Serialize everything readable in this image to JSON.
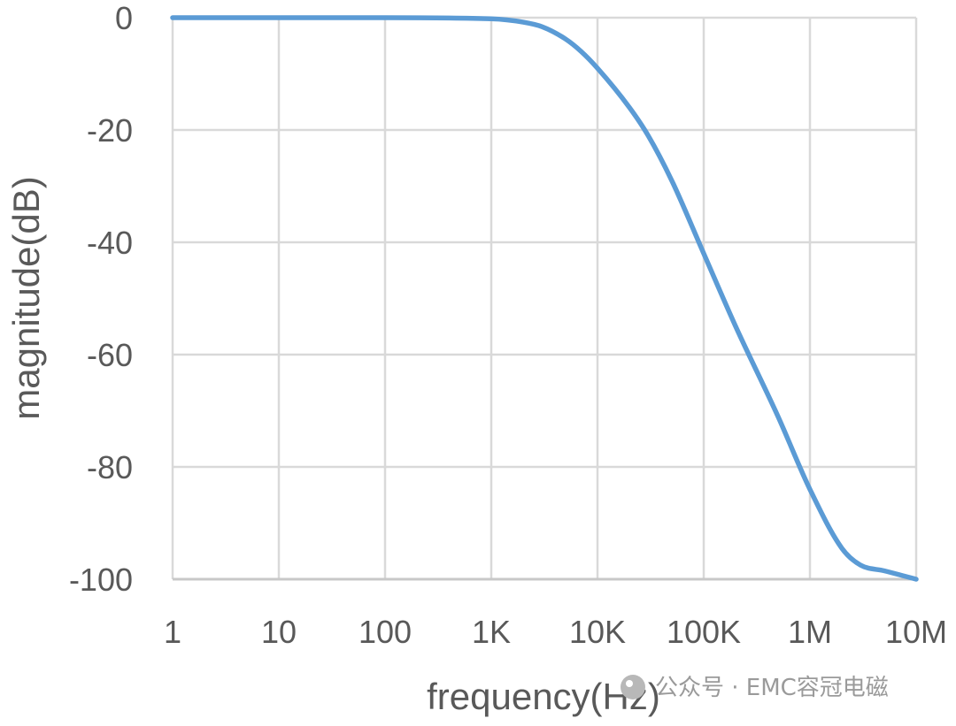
{
  "chart_data": {
    "type": "line",
    "xlabel": "frequency(Hz)",
    "ylabel": "magnitude(dB)",
    "x_scale": "log",
    "xlim": [
      1,
      10000000
    ],
    "ylim": [
      -100,
      0
    ],
    "grid": true,
    "x_ticks": [
      {
        "value": 1,
        "label": "1"
      },
      {
        "value": 10,
        "label": "10"
      },
      {
        "value": 100,
        "label": "100"
      },
      {
        "value": 1000,
        "label": "1K"
      },
      {
        "value": 10000,
        "label": "10K"
      },
      {
        "value": 100000,
        "label": "100K"
      },
      {
        "value": 1000000,
        "label": "1M"
      },
      {
        "value": 10000000,
        "label": "10M"
      }
    ],
    "y_ticks": [
      {
        "value": 0,
        "label": "0"
      },
      {
        "value": -20,
        "label": "-20"
      },
      {
        "value": -40,
        "label": "-40"
      },
      {
        "value": -60,
        "label": "-60"
      },
      {
        "value": -80,
        "label": "-80"
      },
      {
        "value": -100,
        "label": "-100"
      }
    ],
    "series": [
      {
        "color": "#5b9bd5",
        "x": [
          1,
          10,
          100,
          1000,
          2000,
          3000,
          5000,
          7000,
          10000,
          20000,
          30000,
          50000,
          100000,
          200000,
          500000,
          1000000,
          2000000,
          3000000,
          5000000,
          10000000
        ],
        "y": [
          0,
          0,
          0,
          -0.2,
          -0.8,
          -1.6,
          -3.8,
          -6,
          -9,
          -16,
          -21,
          -29,
          -42,
          -55,
          -71,
          -84,
          -94.5,
          -97.5,
          -98.5,
          -100
        ]
      }
    ]
  },
  "watermark": {
    "text": "公众号 · EMC容冠电磁"
  }
}
